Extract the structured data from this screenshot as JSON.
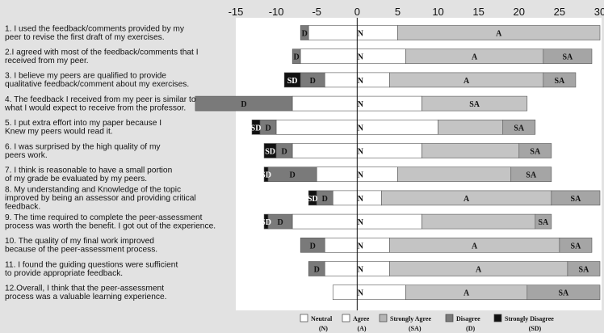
{
  "chart_data": {
    "type": "bar",
    "subtype": "stacked-diverging-horizontal",
    "title": "",
    "xlabel": "",
    "ylabel": "",
    "xlim": [
      -15,
      30
    ],
    "x_ticks": [
      -15,
      -10,
      -5,
      0,
      5,
      10,
      15,
      20,
      25,
      30
    ],
    "x_tick_labels": [
      "-15",
      "-10",
      "-5",
      "0",
      "5",
      "10",
      "15",
      "20",
      "25",
      "30"
    ],
    "grid": false,
    "legend_position": "bottom",
    "categories": [
      [
        "1. I used the feedback/comments provided by my",
        "peer to revise the first draft of my exercises."
      ],
      [
        "2.I agreed with most of the feedback/comments that I",
        "received from my peer."
      ],
      [
        "3. I believe my peers are qualified to provide",
        "qualitative feedback/comment about my exercises."
      ],
      [
        "4. The feedback I received from my peer is similar to",
        "what I would expect to receive from the professor."
      ],
      [
        "5. I put extra effort into my paper because I",
        "Knew my peers would read it."
      ],
      [
        "6. I was surprised by the high quality of my",
        "peers work."
      ],
      [
        "7. I think is reasonable to have a small portion",
        "of my grade be evaluated by my peers."
      ],
      [
        "8. My understanding and Knowledge of the topic",
        "improved by being an assessor and providing critical",
        "feedback."
      ],
      [
        "9. The time required to complete the peer-assessment",
        "process was worth the benefit. I got out of the experience."
      ],
      [
        "10. The quality of my final work improved",
        "because of the peer-assessment process."
      ],
      [
        "11. I found the guiding questions were sufficient",
        "to provide appropriate feedback."
      ],
      [
        "12.Overall, I think that the peer-assessment",
        "process was a valuable learning experience."
      ]
    ],
    "series": [
      {
        "name": "Strongly Disagree",
        "abbr": "SD",
        "color": "#111111",
        "text_color": "#ffffff",
        "values": [
          0,
          0,
          2,
          0,
          1,
          1.5,
          0.5,
          1,
          0.5,
          0,
          0,
          0
        ]
      },
      {
        "name": "Disagree",
        "abbr": "D",
        "color": "#7a7a7a",
        "text_color": "#111111",
        "values": [
          1,
          1,
          3,
          12,
          2,
          2,
          6,
          2,
          3,
          3,
          2,
          0
        ]
      },
      {
        "name": "Neutral",
        "abbr": "N",
        "color": "#ffffff",
        "text_color": "#111111",
        "values": [
          6,
          7,
          4,
          8,
          10,
          8,
          5,
          3,
          8,
          4,
          4,
          3
        ]
      },
      {
        "name": "Agree",
        "abbr": "A",
        "color": "#ffffff",
        "text_color": "#111111",
        "values": [
          5,
          6,
          4,
          8,
          10,
          8,
          5,
          3,
          8,
          4,
          4,
          6
        ]
      },
      {
        "name": "Strongly Agree",
        "abbr": "SA",
        "color": "#c4c4c4",
        "text_color": "#111111",
        "values": [
          25,
          17,
          19,
          13,
          8,
          12,
          14,
          21,
          14,
          21,
          22,
          15
        ]
      },
      {
        "name": "Strongly Agree",
        "abbr": "SA",
        "color": "#a5a5a5",
        "text_color": "#111111",
        "values": [
          0,
          6,
          4,
          0,
          4,
          4,
          5,
          6,
          2,
          4,
          4,
          9
        ]
      }
    ],
    "segment_labels": [
      [
        "D",
        "N",
        "A",
        ""
      ],
      [
        "D",
        "N",
        "A",
        "SA"
      ],
      [
        "SD",
        "D",
        "N",
        "A",
        "SA"
      ],
      [
        "D",
        "N",
        "SA"
      ],
      [
        "SD",
        "D",
        "N",
        "SA"
      ],
      [
        "SD",
        "D",
        "N",
        "SA"
      ],
      [
        "SD",
        "D",
        "N",
        "SA"
      ],
      [
        "SD",
        "D",
        "N",
        "A",
        "SA"
      ],
      [
        "SD",
        "D",
        "N",
        "SA"
      ],
      [
        "D",
        "N",
        "A",
        "SA"
      ],
      [
        "D",
        "N",
        "A",
        "SA"
      ],
      [
        "N",
        "A",
        "SA"
      ]
    ],
    "legend": [
      {
        "name": "Neutral",
        "abbr": "(N)",
        "color": "#ffffff"
      },
      {
        "name": "Agree",
        "abbr": "(A)",
        "color": "#ffffff"
      },
      {
        "name": "Strongly Agree",
        "abbr": "(SA)",
        "color": "#b5b5b5"
      },
      {
        "name": "Disagree",
        "abbr": "(D)",
        "color": "#7a7a7a"
      },
      {
        "name": "Strongly Disagree",
        "abbr": "(SD)",
        "color": "#111111"
      }
    ]
  }
}
